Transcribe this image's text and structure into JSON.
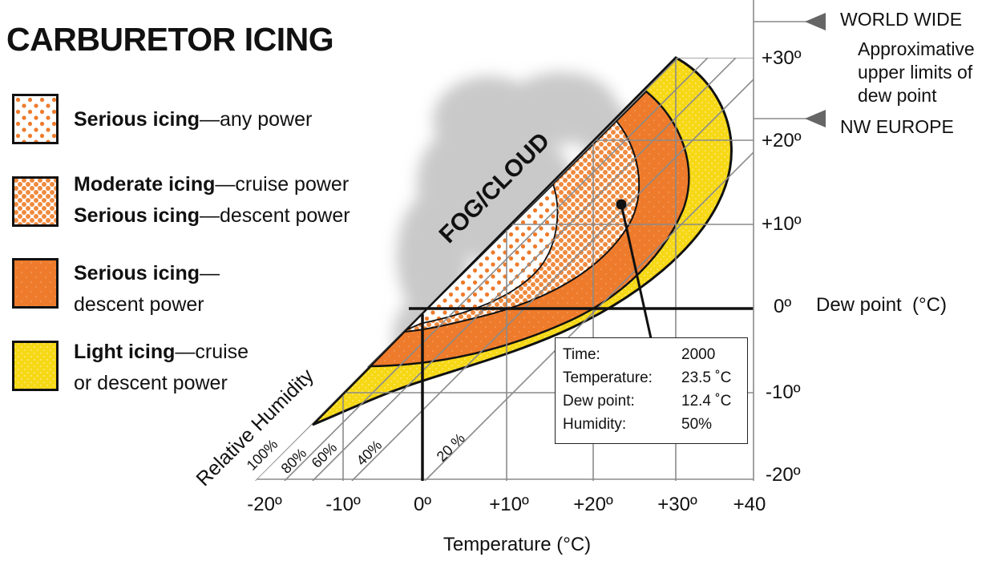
{
  "title": "CARBURETOR ICING",
  "legend": [
    {
      "bold": "Serious icing",
      "rest": "—any power",
      "line2_bold": "",
      "line2": "",
      "pattern": "small-dots"
    },
    {
      "bold": "Moderate icing",
      "rest": "—cruise power",
      "line2_bold": "Serious icing",
      "line2": "—descent power",
      "pattern": "medium-dots"
    },
    {
      "bold": "Serious icing",
      "rest": "—",
      "line2_bold": "",
      "line2": "descent power",
      "pattern": "large-dots"
    },
    {
      "bold": "Light icing",
      "rest": "—cruise",
      "line2_bold": "",
      "line2": "or descent power",
      "pattern": "yellow-dots"
    }
  ],
  "fog_label": "FOG/CLOUD",
  "rh_axis_label": "Relative Humidity",
  "rh_labels": [
    "100%",
    "80%",
    "60%",
    "40%",
    "20 %"
  ],
  "right_annotations": {
    "world_wide": "WORLD WIDE",
    "note_lines": [
      "Approximative",
      "upper limits of",
      "dew point"
    ],
    "nw_europe": "NW EUROPE"
  },
  "info_box": {
    "rows": [
      {
        "key": "Time:",
        "value": "2000"
      },
      {
        "key": "Temperature:",
        "value": "23.5 ˚C"
      },
      {
        "key": "Dew point:",
        "value": "12.4 ˚C"
      },
      {
        "key": "Humidity:",
        "value": "50%"
      }
    ]
  },
  "colors": {
    "orange": "#ee7b2b",
    "yellow": "#f6d816",
    "grid": "#8a8a8a",
    "cloud": "#c8c8c8"
  },
  "chart_data": {
    "type": "diagram",
    "title": "CARBURETOR ICING",
    "xlabel": "Temperature (°C)",
    "ylabel": "Dew point  (°C)",
    "x_ticks": [
      "-20º",
      "-10º",
      "0º",
      "+10º",
      "+20º",
      "+30º",
      "+40"
    ],
    "y_ticks": [
      "+30º",
      "+20º",
      "+10º",
      "0º",
      "-10º",
      "-20º"
    ],
    "xlim": [
      -20,
      40
    ],
    "ylim": [
      -20,
      30
    ],
    "marked_point": {
      "temperature": 23.5,
      "dew_point": 12.4,
      "humidity": 50,
      "time": "2000"
    },
    "rh_lines": [
      100,
      80,
      60,
      40,
      20
    ]
  }
}
